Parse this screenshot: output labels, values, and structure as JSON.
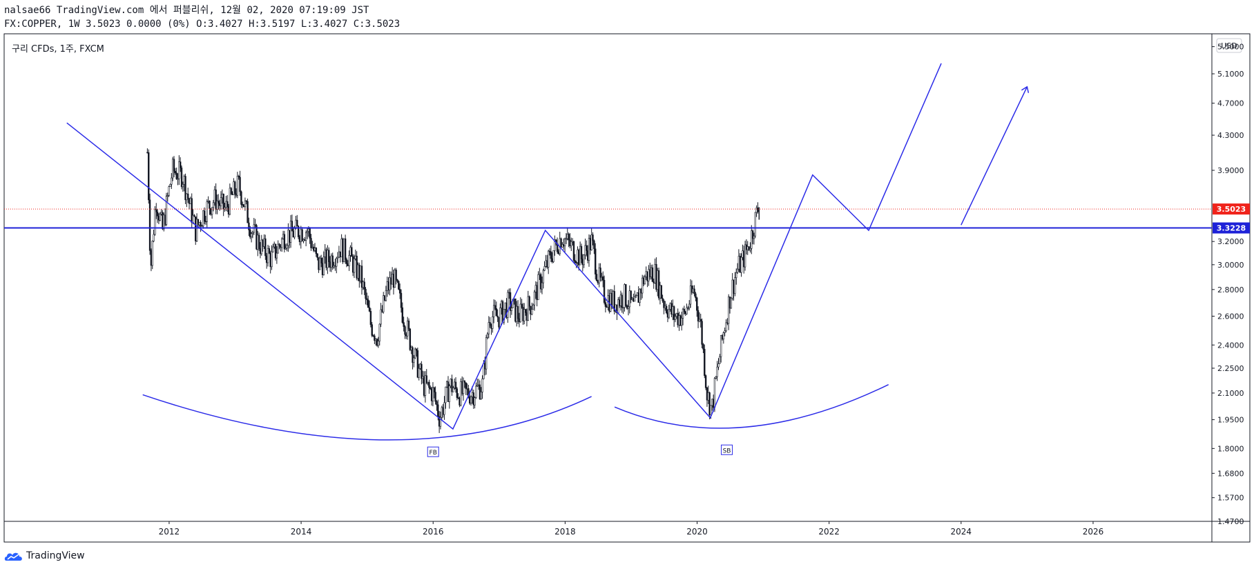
{
  "header": {
    "line1": "nalsae66 TradingView.com 에서 퍼블리쉬, 12월 02, 2020 07:19:09 JST",
    "line2": "FX:COPPER, 1W 3.5023 0.0000 (0%) O:3.4027 H:3.5197 L:3.4027 C:3.5023"
  },
  "footer": {
    "brand": "TradingView",
    "logo_icon": "tradingview-cloud-icon"
  },
  "chart_data": {
    "type": "candlestick",
    "title": "구리 CFDs, 1주, FXCM",
    "currency": "USD",
    "ylim": [
      1.47,
      5.7
    ],
    "xlim": [
      2009.5,
      2027.8
    ],
    "y_scale": "log",
    "y_ticks": [
      5.5,
      5.1,
      4.7,
      4.3,
      3.9,
      3.2,
      3.0,
      2.8,
      2.6,
      2.4,
      2.25,
      2.1,
      1.95,
      1.8,
      1.68,
      1.57,
      1.47
    ],
    "y_tick_labels": [
      "5.5000",
      "5.1000",
      "4.7000",
      "4.3000",
      "3.9000",
      "3.2000",
      "3.0000",
      "2.8000",
      "2.6000",
      "2.4000",
      "2.2500",
      "2.1000",
      "1.9500",
      "1.8000",
      "1.6800",
      "1.5700",
      "1.4700"
    ],
    "x_ticks": [
      2012,
      2014,
      2016,
      2018,
      2020,
      2022,
      2024,
      2026
    ],
    "x_tick_labels": [
      "2012",
      "2014",
      "2016",
      "2018",
      "2020",
      "2022",
      "2024",
      "2026"
    ],
    "price_path": [
      [
        2011.67,
        4.1
      ],
      [
        2011.72,
        2.95
      ],
      [
        2011.8,
        3.6
      ],
      [
        2011.9,
        3.3
      ],
      [
        2012.05,
        3.9
      ],
      [
        2012.2,
        3.85
      ],
      [
        2012.4,
        3.3
      ],
      [
        2012.55,
        3.5
      ],
      [
        2012.7,
        3.6
      ],
      [
        2012.85,
        3.5
      ],
      [
        2013.05,
        3.75
      ],
      [
        2013.25,
        3.3
      ],
      [
        2013.4,
        3.15
      ],
      [
        2013.55,
        3.05
      ],
      [
        2013.75,
        3.25
      ],
      [
        2013.95,
        3.3
      ],
      [
        2014.1,
        3.3
      ],
      [
        2014.25,
        3.0
      ],
      [
        2014.45,
        3.05
      ],
      [
        2014.6,
        3.15
      ],
      [
        2014.75,
        3.05
      ],
      [
        2014.9,
        2.9
      ],
      [
        2015.05,
        2.55
      ],
      [
        2015.15,
        2.45
      ],
      [
        2015.3,
        2.8
      ],
      [
        2015.4,
        2.9
      ],
      [
        2015.55,
        2.6
      ],
      [
        2015.7,
        2.35
      ],
      [
        2015.85,
        2.15
      ],
      [
        2016.0,
        2.1
      ],
      [
        2016.1,
        1.96
      ],
      [
        2016.25,
        2.15
      ],
      [
        2016.4,
        2.1
      ],
      [
        2016.6,
        2.1
      ],
      [
        2016.75,
        2.15
      ],
      [
        2016.85,
        2.6
      ],
      [
        2017.0,
        2.6
      ],
      [
        2017.15,
        2.7
      ],
      [
        2017.3,
        2.6
      ],
      [
        2017.5,
        2.7
      ],
      [
        2017.65,
        2.9
      ],
      [
        2017.8,
        3.1
      ],
      [
        2017.95,
        3.25
      ],
      [
        2018.1,
        3.15
      ],
      [
        2018.25,
        3.05
      ],
      [
        2018.4,
        3.2
      ],
      [
        2018.5,
        2.9
      ],
      [
        2018.6,
        2.75
      ],
      [
        2018.75,
        2.7
      ],
      [
        2018.9,
        2.75
      ],
      [
        2019.05,
        2.65
      ],
      [
        2019.2,
        2.9
      ],
      [
        2019.35,
        2.95
      ],
      [
        2019.5,
        2.7
      ],
      [
        2019.65,
        2.6
      ],
      [
        2019.8,
        2.6
      ],
      [
        2019.95,
        2.8
      ],
      [
        2020.05,
        2.55
      ],
      [
        2020.15,
        2.1
      ],
      [
        2020.22,
        2.0
      ],
      [
        2020.35,
        2.35
      ],
      [
        2020.5,
        2.75
      ],
      [
        2020.6,
        2.95
      ],
      [
        2020.7,
        3.05
      ],
      [
        2020.8,
        3.2
      ],
      [
        2020.92,
        3.5
      ]
    ],
    "annotations": {
      "trendline_color": "#2b2be8",
      "last_price": 3.5023,
      "last_price_label": "3.5023",
      "last_price_color": "#f0231b",
      "neckline": 3.3228,
      "neckline_label": "3.3228",
      "neckline_color": "#1e22d8",
      "labels": [
        {
          "text": "FB",
          "x": 2016.0,
          "y": 1.78
        },
        {
          "text": "SB",
          "x": 2020.45,
          "y": 1.79
        }
      ],
      "path_lines": [
        [
          [
            2010.45,
            4.45
          ],
          [
            2016.3,
            1.9
          ],
          [
            2017.7,
            3.3
          ],
          [
            2020.2,
            1.96
          ],
          [
            2021.75,
            3.85
          ],
          [
            2022.6,
            3.3
          ],
          [
            2023.7,
            5.25
          ]
        ],
        [
          [
            2024.0,
            3.35
          ],
          [
            2025.0,
            4.92
          ]
        ]
      ],
      "arcs": [
        {
          "from": [
            2016.2,
            2.08
          ],
          "ctrl": [
            2015.9,
            1.78
          ],
          "to": [
            2016.45,
            2.08
          ],
          "label": "first-bottom-arc"
        },
        {
          "from": [
            2020.2,
            2.05
          ],
          "ctrl": [
            2020.5,
            1.85
          ],
          "to": [
            2021.4,
            2.15
          ],
          "label": "second-bottom-arc"
        }
      ]
    }
  }
}
